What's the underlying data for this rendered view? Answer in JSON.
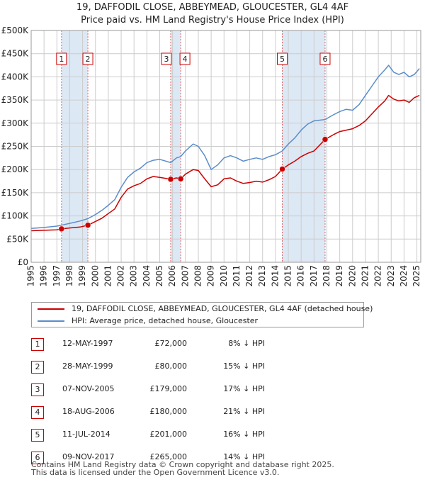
{
  "chart_data": {
    "type": "line",
    "title": "19, DAFFODIL CLOSE, ABBEYMEAD, GLOUCESTER, GL4 4AF",
    "subtitle": "Price paid vs. HM Land Registry's House Price Index (HPI)",
    "xlim": [
      1995,
      2025.3
    ],
    "ylim": [
      0,
      500000
    ],
    "y_ticks": [
      0,
      50000,
      100000,
      150000,
      200000,
      250000,
      300000,
      350000,
      400000,
      450000,
      500000
    ],
    "y_tick_labels": [
      "£0",
      "£50K",
      "£100K",
      "£150K",
      "£200K",
      "£250K",
      "£300K",
      "£350K",
      "£400K",
      "£450K",
      "£500K"
    ],
    "x_ticks": [
      1995,
      1996,
      1997,
      1998,
      1999,
      2000,
      2001,
      2002,
      2003,
      2004,
      2005,
      2006,
      2007,
      2008,
      2009,
      2010,
      2011,
      2012,
      2013,
      2014,
      2015,
      2016,
      2017,
      2018,
      2019,
      2020,
      2021,
      2022,
      2023,
      2024,
      2025
    ],
    "grid": true,
    "colors": {
      "property": "#cc0000",
      "hpi": "#5b8dc9",
      "shade": "#dde8f5",
      "grid": "#cccccc",
      "marker_line": "#e06666"
    },
    "series": [
      {
        "name": "19, DAFFODIL CLOSE, ABBEYMEAD, GLOUCESTER, GL4 4AF (detached house)",
        "x": [
          1995.0,
          1996.0,
          1997.0,
          1997.36,
          1998.0,
          1998.8,
          1999.41,
          2000.0,
          2000.5,
          2001.0,
          2001.5,
          2002.0,
          2002.5,
          2003.0,
          2003.5,
          2004.0,
          2004.5,
          2005.0,
          2005.85,
          2006.3,
          2006.63,
          2007.0,
          2007.6,
          2008.0,
          2008.5,
          2009.0,
          2009.5,
          2010.0,
          2010.5,
          2011.0,
          2011.5,
          2012.0,
          2012.5,
          2013.0,
          2013.5,
          2014.0,
          2014.53,
          2015.0,
          2015.5,
          2016.0,
          2016.5,
          2017.0,
          2017.86,
          2018.5,
          2019.0,
          2019.5,
          2020.0,
          2020.5,
          2021.0,
          2021.5,
          2022.0,
          2022.5,
          2022.8,
          2023.2,
          2023.6,
          2024.0,
          2024.4,
          2024.8,
          2025.2
        ],
        "values": [
          68000,
          69000,
          70000,
          72000,
          74000,
          76000,
          80000,
          88000,
          95000,
          105000,
          115000,
          140000,
          158000,
          165000,
          170000,
          180000,
          185000,
          183000,
          179000,
          182000,
          180000,
          190000,
          200000,
          198000,
          180000,
          163000,
          167000,
          180000,
          182000,
          175000,
          170000,
          172000,
          175000,
          173000,
          178000,
          185000,
          201000,
          210000,
          218000,
          228000,
          235000,
          240000,
          265000,
          275000,
          282000,
          285000,
          288000,
          295000,
          305000,
          320000,
          335000,
          348000,
          360000,
          352000,
          348000,
          350000,
          345000,
          355000,
          360000
        ]
      },
      {
        "name": "HPI: Average price, detached house, Gloucester",
        "x": [
          1995.0,
          1996.0,
          1997.0,
          1997.36,
          1998.0,
          1998.8,
          1999.41,
          2000.0,
          2000.5,
          2001.0,
          2001.5,
          2002.0,
          2002.5,
          2003.0,
          2003.5,
          2004.0,
          2004.5,
          2005.0,
          2005.85,
          2006.3,
          2006.63,
          2007.0,
          2007.6,
          2008.0,
          2008.5,
          2009.0,
          2009.5,
          2010.0,
          2010.5,
          2011.0,
          2011.5,
          2012.0,
          2012.5,
          2013.0,
          2013.5,
          2014.0,
          2014.53,
          2015.0,
          2015.5,
          2016.0,
          2016.5,
          2017.0,
          2017.86,
          2018.5,
          2019.0,
          2019.5,
          2020.0,
          2020.5,
          2021.0,
          2021.5,
          2022.0,
          2022.5,
          2022.8,
          2023.2,
          2023.6,
          2024.0,
          2024.4,
          2024.8,
          2025.2
        ],
        "values": [
          73000,
          75000,
          78000,
          80000,
          84000,
          89000,
          94000,
          103000,
          112000,
          123000,
          135000,
          162000,
          183000,
          195000,
          203000,
          215000,
          220000,
          222000,
          215000,
          225000,
          228000,
          240000,
          255000,
          250000,
          230000,
          200000,
          210000,
          225000,
          230000,
          225000,
          218000,
          222000,
          225000,
          222000,
          228000,
          232000,
          240000,
          255000,
          268000,
          285000,
          298000,
          305000,
          308000,
          318000,
          325000,
          330000,
          328000,
          340000,
          360000,
          380000,
          400000,
          415000,
          425000,
          410000,
          405000,
          410000,
          400000,
          405000,
          418000
        ]
      }
    ],
    "sale_markers": [
      {
        "label": "1",
        "x": 1997.36,
        "price": 72000
      },
      {
        "label": "2",
        "x": 1999.41,
        "price": 80000
      },
      {
        "label": "3",
        "x": 2005.85,
        "price": 179000
      },
      {
        "label": "4",
        "x": 2006.63,
        "price": 180000
      },
      {
        "label": "5",
        "x": 2014.53,
        "price": 201000
      },
      {
        "label": "6",
        "x": 2017.86,
        "price": 265000
      }
    ],
    "shaded_ranges": [
      [
        1997.36,
        1999.41
      ],
      [
        2005.85,
        2006.63
      ],
      [
        2014.53,
        2017.86
      ]
    ]
  },
  "legend": {
    "property_label": "19, DAFFODIL CLOSE, ABBEYMEAD, GLOUCESTER, GL4 4AF (detached house)",
    "hpi_label": "HPI: Average price, detached house, Gloucester"
  },
  "sales": [
    {
      "num": "1",
      "date": "12-MAY-1997",
      "price": "£72,000",
      "hpi": "8% ↓ HPI"
    },
    {
      "num": "2",
      "date": "28-MAY-1999",
      "price": "£80,000",
      "hpi": "15% ↓ HPI"
    },
    {
      "num": "3",
      "date": "07-NOV-2005",
      "price": "£179,000",
      "hpi": "17% ↓ HPI"
    },
    {
      "num": "4",
      "date": "18-AUG-2006",
      "price": "£180,000",
      "hpi": "21% ↓ HPI"
    },
    {
      "num": "5",
      "date": "11-JUL-2014",
      "price": "£201,000",
      "hpi": "16% ↓ HPI"
    },
    {
      "num": "6",
      "date": "09-NOV-2017",
      "price": "£265,000",
      "hpi": "14% ↓ HPI"
    }
  ],
  "footer": {
    "line1": "Contains HM Land Registry data © Crown copyright and database right 2025.",
    "line2": "This data is licensed under the Open Government Licence v3.0."
  }
}
